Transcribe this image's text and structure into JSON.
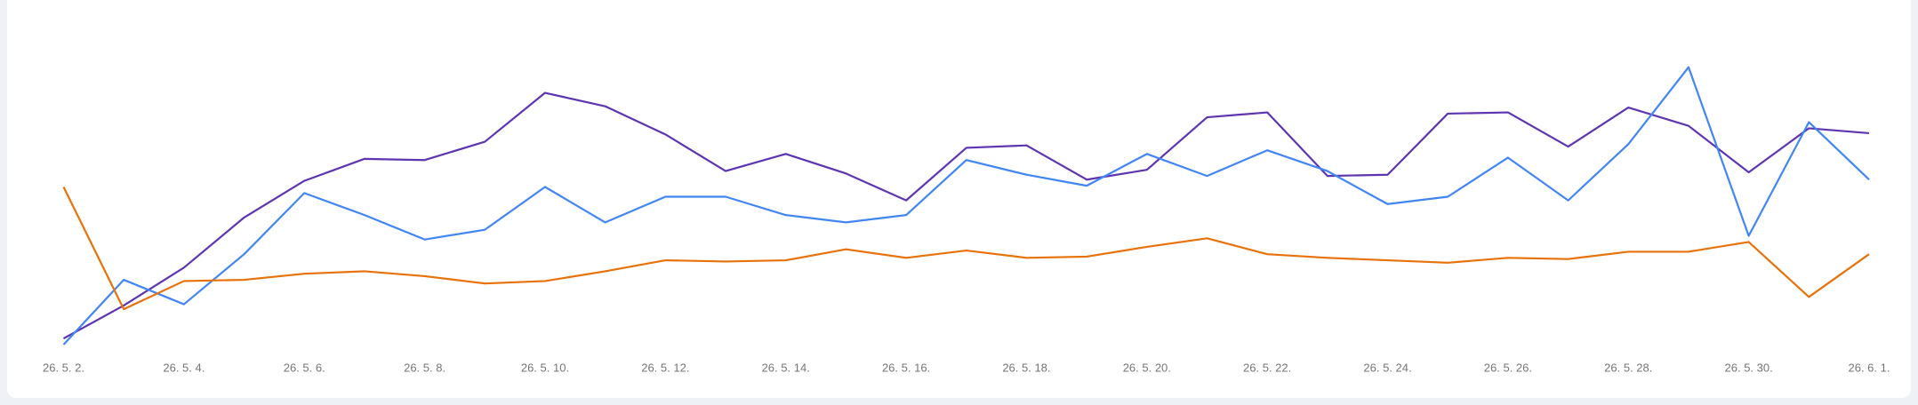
{
  "chart_data": {
    "type": "line",
    "categories": [
      "26. 5. 2.",
      null,
      "26. 5. 4.",
      null,
      "26. 5. 6.",
      null,
      "26. 5. 8.",
      null,
      "26. 5. 10.",
      null,
      "26. 5. 12.",
      null,
      "26. 5. 14.",
      null,
      "26. 5. 16.",
      null,
      "26. 5. 18.",
      null,
      "26. 5. 20.",
      null,
      "26. 5. 22.",
      null,
      "26. 5. 24.",
      null,
      "26. 5. 26.",
      null,
      "26. 5. 28.",
      null,
      "26. 5. 30.",
      null,
      "26. 6. 1."
    ],
    "ylim": [
      0,
      100
    ],
    "series": [
      {
        "color": "#5e35b1",
        "values": [
          5.2,
          16,
          28.4,
          44.8,
          56.8,
          64,
          63.6,
          69.6,
          85.6,
          81.2,
          72,
          60,
          65.6,
          59.2,
          50.4,
          67.6,
          68.4,
          57.2,
          60.4,
          77.6,
          79.2,
          58.4,
          58.8,
          78.8,
          79.2,
          68,
          80.8,
          74.8,
          59.6,
          74,
          72.4
        ]
      },
      {
        "color": "#4285f4",
        "values": [
          3.2,
          24.4,
          16.4,
          32.8,
          52.8,
          45.6,
          37.6,
          40.8,
          54.8,
          43.2,
          51.6,
          51.6,
          45.6,
          43.2,
          45.6,
          63.6,
          58.8,
          55.2,
          65.6,
          58.4,
          66.8,
          60,
          49.2,
          51.6,
          64.4,
          50.4,
          68.8,
          94,
          38.8,
          76,
          57.2
        ]
      },
      {
        "color": "#e8710a",
        "values": [
          54.8,
          14.8,
          24,
          24.4,
          26.4,
          27.2,
          25.6,
          23.2,
          24,
          27.2,
          30.8,
          30.4,
          30.8,
          34.4,
          31.6,
          34,
          31.6,
          32,
          35.2,
          38,
          32.8,
          31.6,
          30.8,
          30,
          31.6,
          31.2,
          33.6,
          33.6,
          36.8,
          18.8,
          32.8
        ]
      }
    ]
  }
}
